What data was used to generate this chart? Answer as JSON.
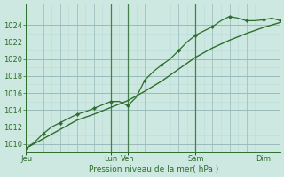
{
  "bg_color": "#cce8e0",
  "grid_color_major": "#99bbbb",
  "grid_color_minor": "#bbdddd",
  "line_color": "#2d6e2d",
  "ylabel": "Pression niveau de la mer( hPa )",
  "ylim": [
    1009.0,
    1026.5
  ],
  "yticks": [
    1010,
    1012,
    1014,
    1016,
    1018,
    1020,
    1022,
    1024
  ],
  "day_labels": [
    "Jeu",
    "Lun",
    "Ven",
    "Sam",
    "Dim"
  ],
  "day_positions": [
    0.0,
    2.5,
    3.0,
    5.0,
    7.0
  ],
  "vline_positions": [
    2.5,
    3.0,
    5.0
  ],
  "xlim": [
    0,
    7.5
  ],
  "total_x": 7.5,
  "smooth_x": [
    0.0,
    0.5,
    1.0,
    1.5,
    2.0,
    2.5,
    3.0,
    3.5,
    4.0,
    4.5,
    5.0,
    5.5,
    6.0,
    6.5,
    7.0,
    7.5
  ],
  "smooth_y": [
    1009.5,
    1010.6,
    1011.7,
    1012.8,
    1013.5,
    1014.3,
    1015.1,
    1016.2,
    1017.4,
    1018.8,
    1020.2,
    1021.3,
    1022.2,
    1023.0,
    1023.7,
    1024.3
  ],
  "jagged_x": [
    0.0,
    0.25,
    0.5,
    0.75,
    1.0,
    1.25,
    1.5,
    1.75,
    2.0,
    2.25,
    2.5,
    2.75,
    3.0,
    3.25,
    3.5,
    3.75,
    4.0,
    4.25,
    4.5,
    4.75,
    5.0,
    5.25,
    5.5,
    5.75,
    6.0,
    6.25,
    6.5,
    6.75,
    7.0,
    7.25,
    7.5
  ],
  "jagged_y": [
    1009.5,
    1010.2,
    1011.2,
    1012.0,
    1012.5,
    1013.0,
    1013.5,
    1013.8,
    1014.2,
    1014.6,
    1015.0,
    1015.0,
    1014.5,
    1015.5,
    1017.5,
    1018.5,
    1019.3,
    1020.0,
    1021.0,
    1022.0,
    1022.8,
    1023.3,
    1023.8,
    1024.5,
    1025.0,
    1024.8,
    1024.5,
    1024.5,
    1024.6,
    1024.8,
    1024.5
  ],
  "marker_x": [
    0.0,
    0.5,
    1.0,
    1.5,
    2.0,
    2.5,
    3.0,
    3.5,
    4.0,
    4.5,
    5.0,
    5.5,
    6.0,
    6.5,
    7.0,
    7.5
  ],
  "marker_y": [
    1009.5,
    1011.2,
    1012.5,
    1013.5,
    1014.2,
    1015.0,
    1014.5,
    1017.5,
    1019.3,
    1021.0,
    1022.8,
    1023.8,
    1025.0,
    1024.5,
    1024.6,
    1024.5
  ],
  "tick_fontsize": 6,
  "label_fontsize": 6.5
}
